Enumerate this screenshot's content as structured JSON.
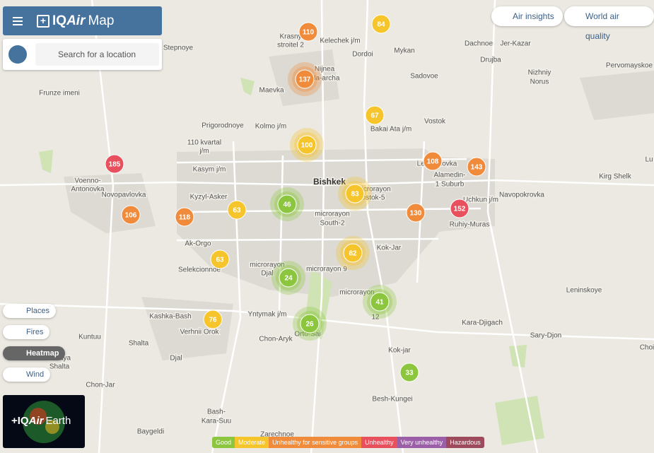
{
  "header": {
    "brand_prefix": "IQ",
    "brand_italic": "Air",
    "product": "Map"
  },
  "search": {
    "placeholder": "Search for a location"
  },
  "top_buttons": [
    "Air insights",
    "World air quality"
  ],
  "layers": [
    "Places",
    "Fires",
    "Heatmap",
    "Wind"
  ],
  "earth": {
    "brand_prefix": "IQ",
    "brand_italic": "Air",
    "label": "Earth"
  },
  "legend": [
    {
      "label": "Good",
      "color": "#8cc63f"
    },
    {
      "label": "Moderate",
      "color": "#f6c42b"
    },
    {
      "label": "Unhealthy for sensitive groups",
      "color": "#f08b3b"
    },
    {
      "label": "Unhealthy",
      "color": "#e9505d"
    },
    {
      "label": "Very unhealthy",
      "color": "#9a5fa6"
    },
    {
      "label": "Hazardous",
      "color": "#9c4a5c"
    }
  ],
  "stations": [
    {
      "aqi": 110,
      "color": "#f08b3b",
      "cluster": false
    },
    {
      "aqi": 84,
      "color": "#f6c42b",
      "cluster": false
    },
    {
      "aqi": 137,
      "color": "#f08b3b",
      "cluster": true
    },
    {
      "aqi": 67,
      "color": "#f6c42b",
      "cluster": false
    },
    {
      "aqi": 100,
      "color": "#f6c42b",
      "cluster": true
    },
    {
      "aqi": 185,
      "color": "#e9505d",
      "cluster": false
    },
    {
      "aqi": 108,
      "color": "#f08b3b",
      "cluster": false
    },
    {
      "aqi": 143,
      "color": "#f08b3b",
      "cluster": false
    },
    {
      "aqi": 83,
      "color": "#f6c42b",
      "cluster": true
    },
    {
      "aqi": 46,
      "color": "#8cc63f",
      "cluster": true
    },
    {
      "aqi": 63,
      "color": "#f6c42b",
      "cluster": false
    },
    {
      "aqi": 106,
      "color": "#f08b3b",
      "cluster": false
    },
    {
      "aqi": 118,
      "color": "#f08b3b",
      "cluster": false
    },
    {
      "aqi": 130,
      "color": "#f08b3b",
      "cluster": false
    },
    {
      "aqi": 152,
      "color": "#e9505d",
      "cluster": false
    },
    {
      "aqi": 82,
      "color": "#f6c42b",
      "cluster": true
    },
    {
      "aqi": 63,
      "color": "#f6c42b",
      "cluster": false
    },
    {
      "aqi": 24,
      "color": "#8cc63f",
      "cluster": true
    },
    {
      "aqi": 41,
      "color": "#8cc63f",
      "cluster": true
    },
    {
      "aqi": 76,
      "color": "#f6c42b",
      "cluster": false
    },
    {
      "aqi": 26,
      "color": "#8cc63f",
      "cluster": true
    },
    {
      "aqi": 33,
      "color": "#8cc63f",
      "cluster": false
    }
  ],
  "places": [
    "Stepnoye",
    "Krasny",
    "stroitel 2",
    "Kelechek j/m",
    "Dordoi",
    "Mykan",
    "Dachnoe",
    "Jer-Kazar",
    "Drujba",
    "Sadovoe",
    "Nizhniy",
    "Norus",
    "Pervomayskoe",
    "Nijnea",
    "Ala-archa",
    "Maevka",
    "Frunze imeni",
    "Vostok",
    "Bakai Ata j/m",
    "Prigorodnoye",
    "Kolmo j/m",
    "110 kvartal",
    "j/m",
    "Kasym j/m",
    "Voenno-",
    "Antonovka",
    "Bishkek",
    "Lebedinovka",
    "Alamedin-",
    "1 Suburb",
    "Kirg Shelk",
    "microrayon",
    "Vostok-5",
    "Novopavlovka",
    "Kyzyl-Asker",
    "Uchkun j/m",
    "Navopokrovka",
    "microrayon",
    "South-2",
    "Ruhiy-Muras",
    "Ak-Orgo",
    "Kok-Jar",
    "Selekcionnoe",
    "microrayon",
    "Djal",
    "microrayon 9",
    "Leninskoye",
    "microrayon",
    "12",
    "Kashka-Bash",
    "Yntymak j/m",
    "Kara-Djigach",
    "Verhnii Orok",
    "Orto-Sai",
    "Kuntuu",
    "Sary-Djon",
    "Chon-Aryk",
    "Shalta",
    "Kok-jar",
    "Djal",
    "Choi",
    "Malaya",
    "Shalta",
    "Chon-Jar",
    "Besh-Kungei",
    "Bash-",
    "Kara-Suu",
    "Baygeldi",
    "Zarechnoe",
    "Lu"
  ]
}
